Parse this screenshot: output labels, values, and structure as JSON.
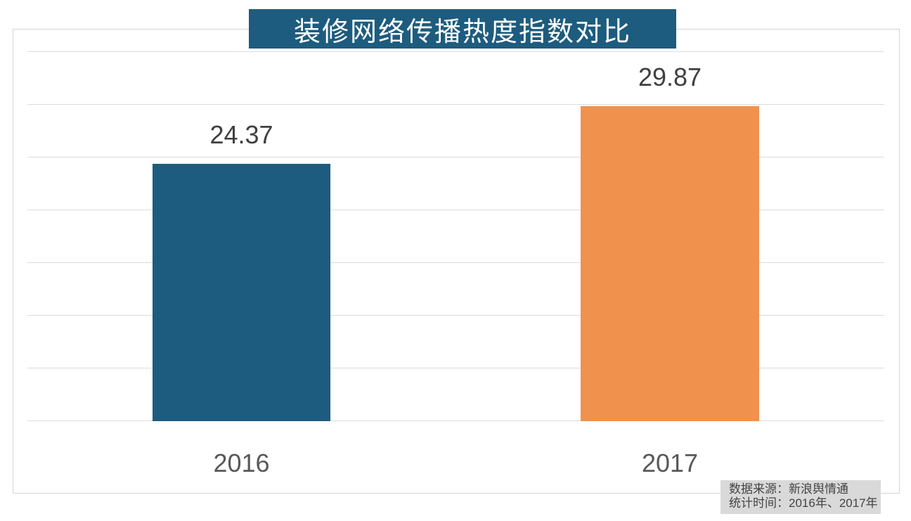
{
  "chart_data": {
    "type": "bar",
    "title": "装修网络传播热度指数对比",
    "categories": [
      "2016",
      "2017"
    ],
    "values": [
      24.37,
      29.87
    ],
    "value_labels": [
      "24.37",
      "29.87"
    ],
    "bar_colors": [
      "#1D5C7E",
      "#F0924D"
    ],
    "ylim": [
      0,
      35
    ],
    "gridline_step": 5,
    "grid": "horizontal-only",
    "legend": "none",
    "axis_tick_labels": "none",
    "source_note": {
      "line1": "数据来源：新浪舆情通",
      "line2": "统计时间：2016年、2017年"
    }
  },
  "colors": {
    "title_bg": "#1D5C7E",
    "title_text": "#FFFFFF",
    "grid_line": "#DCDCDC",
    "plot_border": "#D5D5D5",
    "value_label_text": "#404040",
    "category_label_text": "#595959",
    "note_bg": "#D9D9D9",
    "note_text": "#444444"
  }
}
